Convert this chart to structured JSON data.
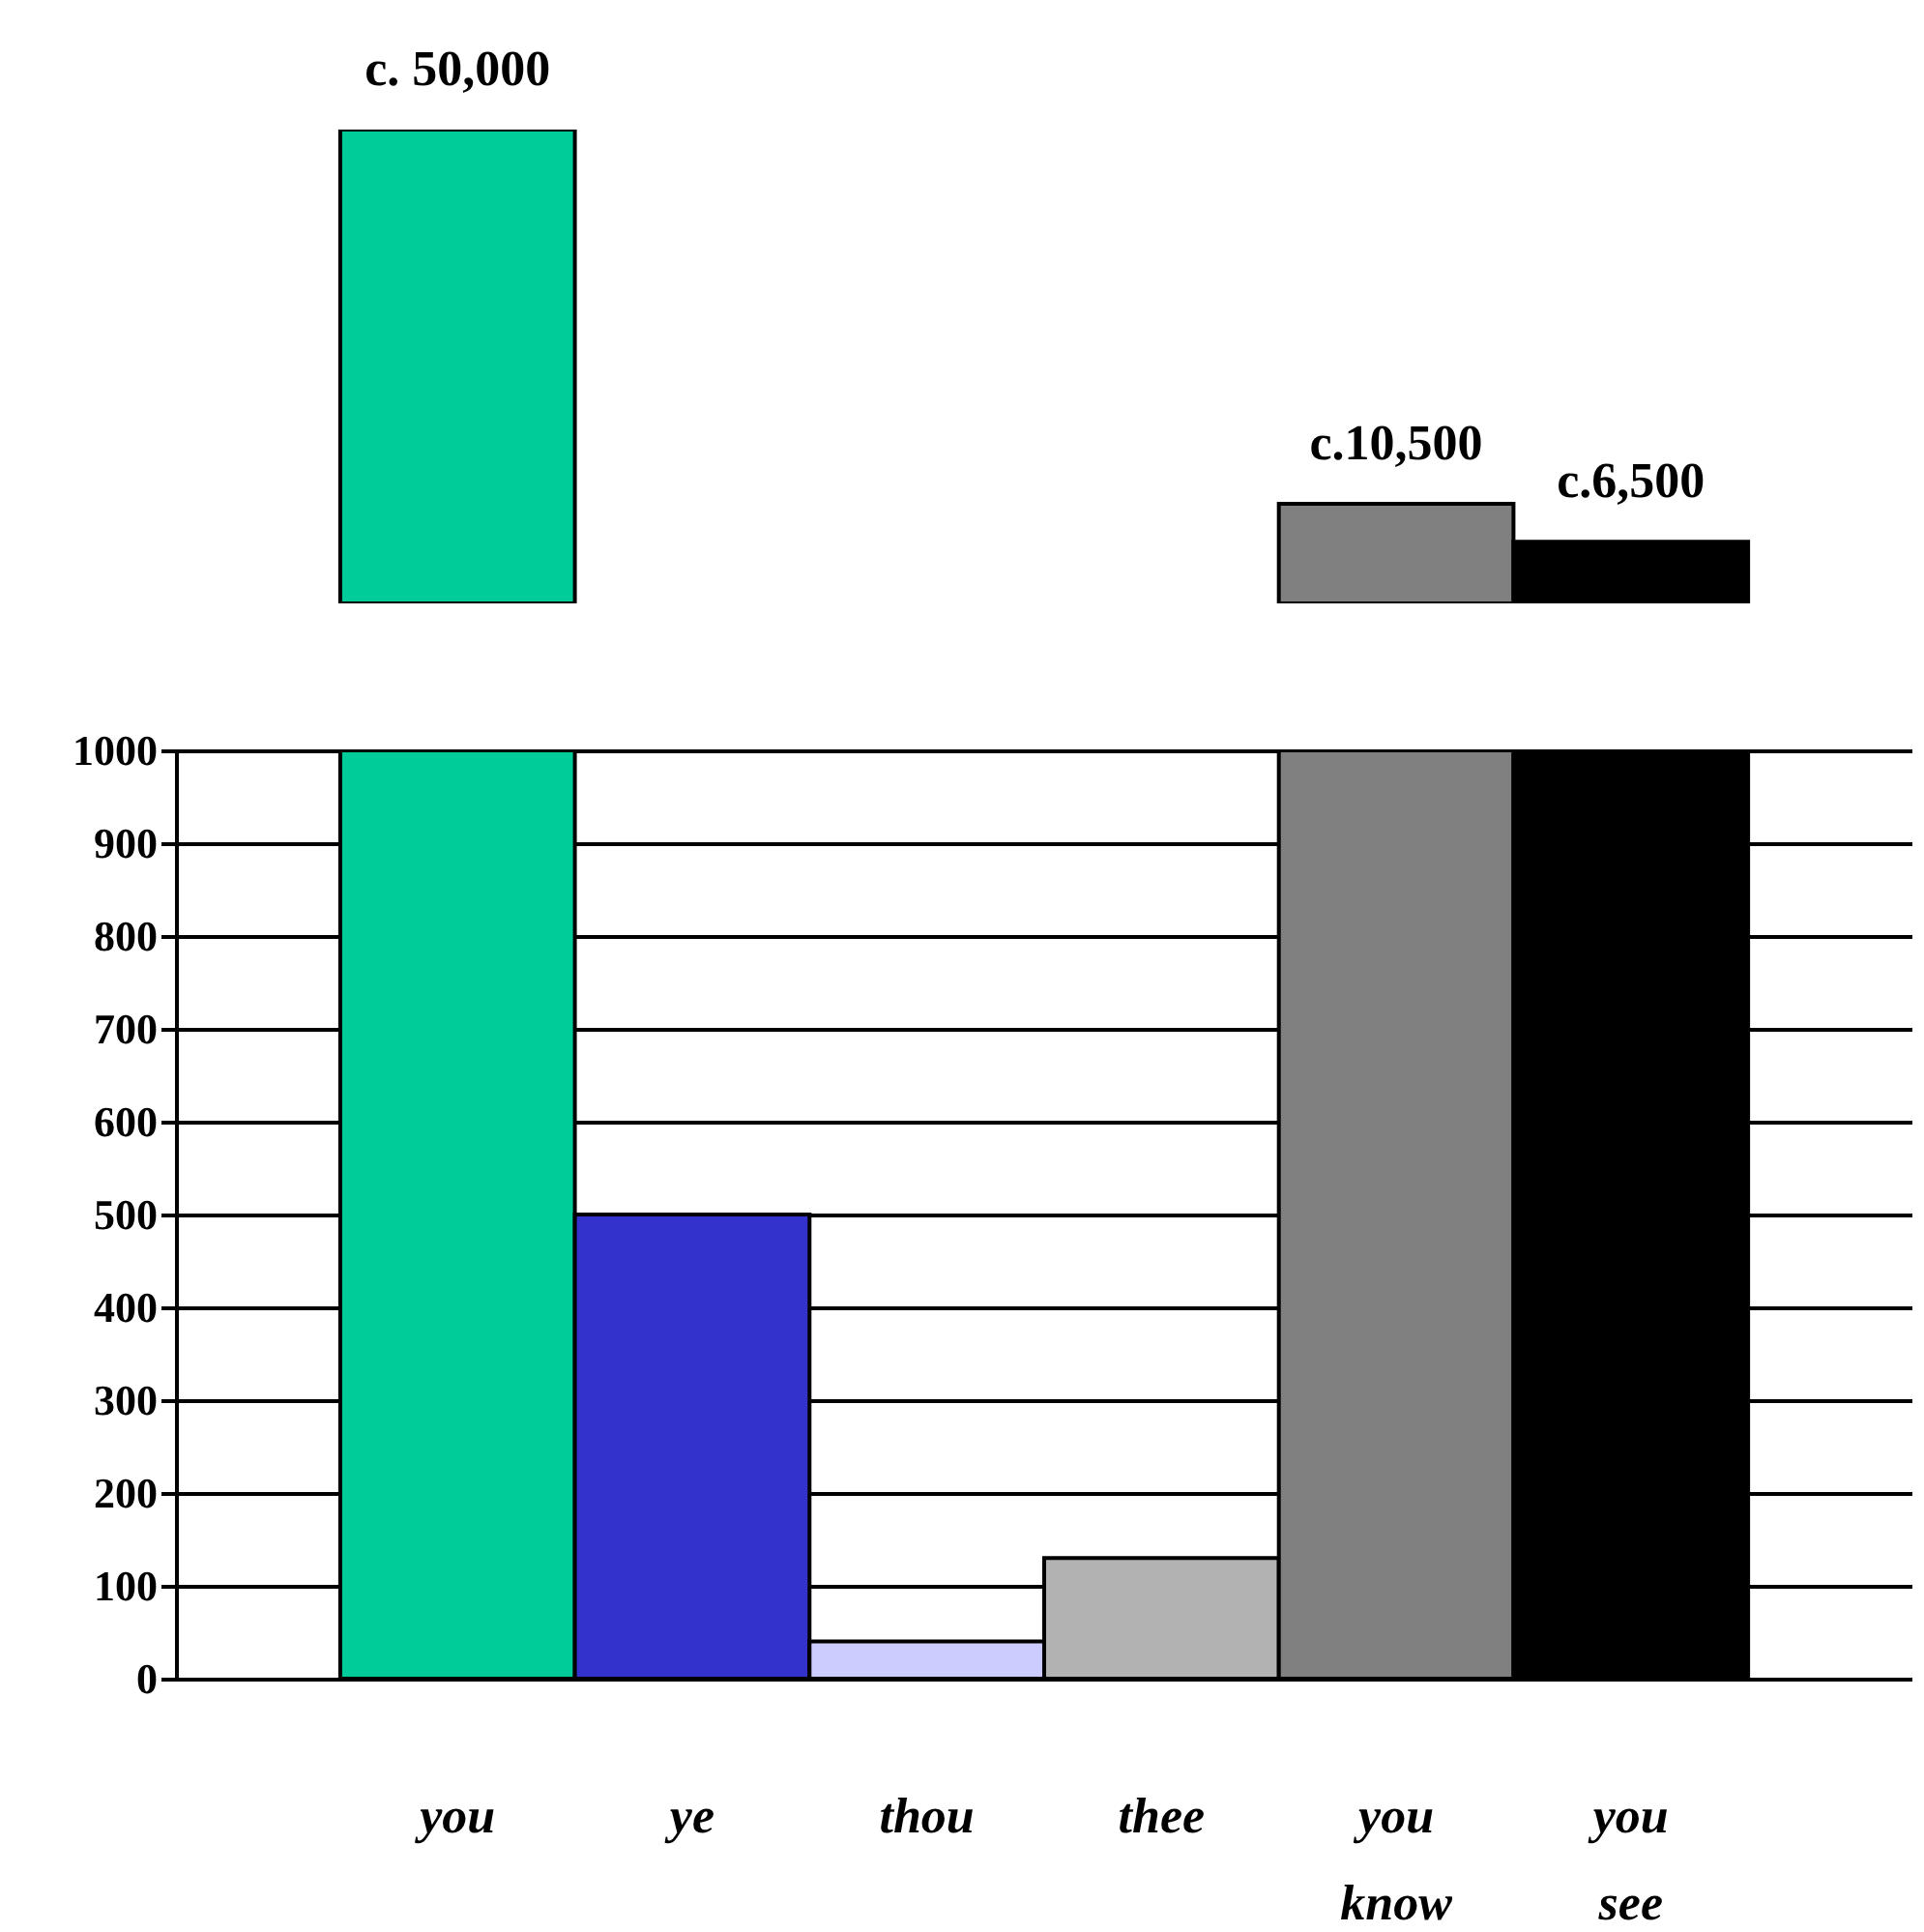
{
  "chart_data": [
    {
      "type": "bar",
      "categories": [
        null,
        null,
        null,
        null,
        null,
        null
      ],
      "values": [
        50000,
        null,
        null,
        null,
        10500,
        6500
      ],
      "colors": [
        "#00cc99",
        "#3333cc",
        "#ccccff",
        "#b2b2b2",
        "#808080",
        "#000000"
      ],
      "value_labels": [
        "c. 50,000",
        null,
        null,
        null,
        "c.10,500",
        "c.6,500"
      ],
      "tick_labels": false
    },
    {
      "type": "bar",
      "categories": [
        "you",
        "ye",
        "thou",
        "thee",
        "you\nknow",
        "you\nsee"
      ],
      "values": [
        1000,
        500,
        40,
        130,
        1000,
        1000
      ],
      "colors": [
        "#00cc99",
        "#3333cc",
        "#ccccff",
        "#b2b2b2",
        "#808080",
        "#000000"
      ],
      "ylim": [
        0,
        1000
      ],
      "yticks": [
        0,
        100,
        200,
        300,
        400,
        500,
        600,
        700,
        800,
        900,
        1000
      ],
      "grid": "y"
    }
  ]
}
